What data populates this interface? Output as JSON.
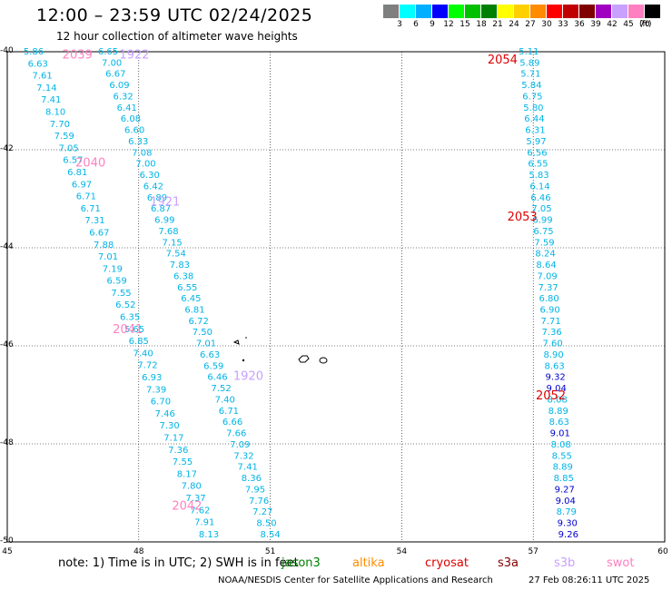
{
  "header": {
    "title": "12:00 – 23:59 UTC 02/24/2025",
    "subtitle": "12 hour collection of altimeter wave heights"
  },
  "legend": {
    "unit": "(ft)",
    "levels": [
      {
        "label": "3",
        "color": "#7f7f7f"
      },
      {
        "label": "6",
        "color": "#00ffff"
      },
      {
        "label": "9",
        "color": "#00b0ff"
      },
      {
        "label": "12",
        "color": "#0000ff"
      },
      {
        "label": "15",
        "color": "#00ff00"
      },
      {
        "label": "18",
        "color": "#00c000"
      },
      {
        "label": "21",
        "color": "#008000"
      },
      {
        "label": "24",
        "color": "#ffff00"
      },
      {
        "label": "27",
        "color": "#ffd000"
      },
      {
        "label": "30",
        "color": "#ff8c00"
      },
      {
        "label": "33",
        "color": "#ff0000"
      },
      {
        "label": "36",
        "color": "#c00000"
      },
      {
        "label": "39",
        "color": "#800000"
      },
      {
        "label": "42",
        "color": "#a000c0"
      },
      {
        "label": "45",
        "color": "#c8a0ff"
      },
      {
        "label": "70",
        "color": "#ff80c0"
      },
      {
        "label": "",
        "color": "#000000"
      }
    ]
  },
  "map": {
    "lat_ticks": [
      "-40",
      "-42",
      "-44",
      "-46",
      "-48",
      "-50"
    ],
    "lon_ticks": [
      "45",
      "48",
      "51",
      "54",
      "57",
      "60"
    ],
    "lat_range": [
      -50,
      -40
    ],
    "lon_range": [
      45,
      60
    ],
    "track_colors": {
      "cyan": "#00b4e6",
      "blue": "#0000cd"
    },
    "pass_labels": [
      {
        "text": "2039",
        "color": "#ff80c0",
        "lon": 46.6,
        "lat": -40.05
      },
      {
        "text": "1922",
        "color": "#c8a0ff",
        "lon": 47.9,
        "lat": -40.05
      },
      {
        "text": "2054",
        "color": "#e00000",
        "lon": 56.3,
        "lat": -40.15
      },
      {
        "text": "2040",
        "color": "#ff80c0",
        "lon": 46.9,
        "lat": -42.25
      },
      {
        "text": "1921",
        "color": "#c8a0ff",
        "lon": 48.6,
        "lat": -43.05
      },
      {
        "text": "2053",
        "color": "#e00000",
        "lon": 56.75,
        "lat": -43.35
      },
      {
        "text": "2041",
        "color": "#ff80c0",
        "lon": 47.75,
        "lat": -45.65
      },
      {
        "text": "1920",
        "color": "#c8a0ff",
        "lon": 50.5,
        "lat": -46.6
      },
      {
        "text": "2052",
        "color": "#e00000",
        "lon": 57.4,
        "lat": -47.0
      },
      {
        "text": "2042",
        "color": "#ff80c0",
        "lon": 49.1,
        "lat": -49.25
      }
    ],
    "tracks": [
      {
        "name": "track-2039",
        "start_lon": 45.6,
        "end_lon": 49.6,
        "values": [
          "5.86",
          "6.63",
          "7.61",
          "7.14",
          "7.41",
          "8.10",
          "7.70",
          "7.59",
          "7.05",
          "6.57",
          "6.81",
          "6.97",
          "6.71",
          "6.71",
          "7.31",
          "6.67",
          "7.88",
          "7.01",
          "7.19",
          "6.59",
          "7.55",
          "6.52",
          "6.35",
          "5.65",
          "6.85",
          "7.40",
          "7.72",
          "6.93",
          "7.39",
          "6.70",
          "7.46",
          "7.30",
          "7.17",
          "7.36",
          "7.55",
          "8.17",
          "7.80",
          "7.37",
          "7.62",
          "7.91",
          "8.13"
        ]
      },
      {
        "name": "track-1922",
        "start_lon": 47.3,
        "end_lon": 51.0,
        "values": [
          "6.65",
          "7.00",
          "6.67",
          "6.09",
          "6.32",
          "6.41",
          "6.08",
          "6.60",
          "6.33",
          "7.08",
          "7.00",
          "6.30",
          "6.42",
          "6.89",
          "6.87",
          "6.99",
          "7.68",
          "7.15",
          "7.54",
          "7.83",
          "6.38",
          "6.55",
          "6.45",
          "6.81",
          "6.72",
          "7.50",
          "7.01",
          "6.63",
          "6.59",
          "6.46",
          "7.52",
          "7.40",
          "6.71",
          "6.66",
          "7.66",
          "7.09",
          "7.32",
          "7.41",
          "8.36",
          "7.95",
          "7.76",
          "7.27",
          "8.50",
          "8.54"
        ]
      },
      {
        "name": "track-2054",
        "start_lon": 56.9,
        "end_lon": 57.8,
        "values": [
          "5.11",
          "5.89",
          "5.71",
          "5.84",
          "6.75",
          "5.80",
          "6.44",
          "6.31",
          "5.97",
          "6.56",
          "6.55",
          "5.83",
          "6.14",
          "6.46",
          "7.05",
          "6.99",
          "6.75",
          "7.59",
          "8.24",
          "8.64",
          "7.09",
          "7.37",
          "6.80",
          "6.90",
          "7.71",
          "7.36",
          "7.60",
          "8.90",
          "8.63",
          "9.32",
          "9.04",
          "8.08",
          "8.89",
          "8.63",
          "9.01",
          "8.08",
          "8.55",
          "8.89",
          "8.85",
          "9.27",
          "9.04",
          "8.79",
          "9.30",
          "9.26"
        ]
      }
    ]
  },
  "footer": {
    "note": "note: 1) Time is in UTC; 2) SWH is in feet",
    "missions": [
      {
        "label": "jason3",
        "color": "#008000"
      },
      {
        "label": "altika",
        "color": "#ff8c00"
      },
      {
        "label": "cryosat",
        "color": "#e00000"
      },
      {
        "label": "s3a",
        "color": "#800000"
      },
      {
        "label": "s3b",
        "color": "#c8a0ff"
      },
      {
        "label": "swot",
        "color": "#ff80c0"
      }
    ],
    "credit": "NOAA/NESDIS Center for Satellite Applications and Research",
    "timestamp": "27 Feb 08:26:11 UTC 2025"
  }
}
